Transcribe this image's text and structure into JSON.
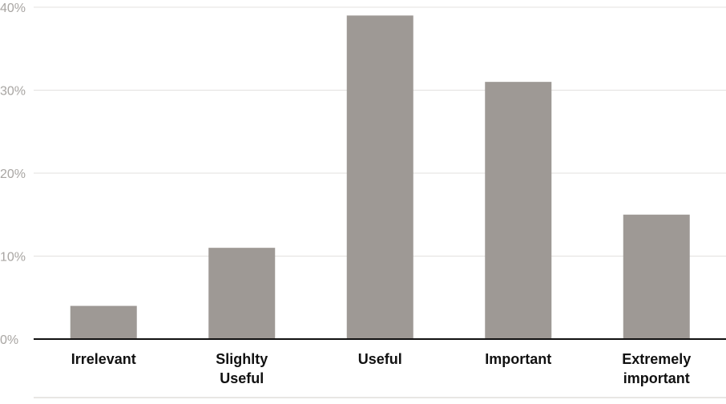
{
  "chart_data": {
    "type": "bar",
    "categories": [
      "Irrelevant",
      "Slighlty Useful",
      "Useful",
      "Important",
      "Extremely important"
    ],
    "category_lines": [
      [
        "Irrelevant"
      ],
      [
        "Slighlty",
        "Useful"
      ],
      [
        "Useful"
      ],
      [
        "Important"
      ],
      [
        "Extremely",
        "important"
      ]
    ],
    "values": [
      4,
      11,
      39,
      31,
      15
    ],
    "ylim": [
      0,
      40
    ],
    "yticks": [
      0,
      10,
      20,
      30,
      40
    ],
    "ytick_labels": [
      "0%",
      "10%",
      "20%",
      "30%",
      "40%"
    ],
    "bar_color": "#9e9995",
    "grid": true,
    "title": "",
    "xlabel": "",
    "ylabel": ""
  }
}
